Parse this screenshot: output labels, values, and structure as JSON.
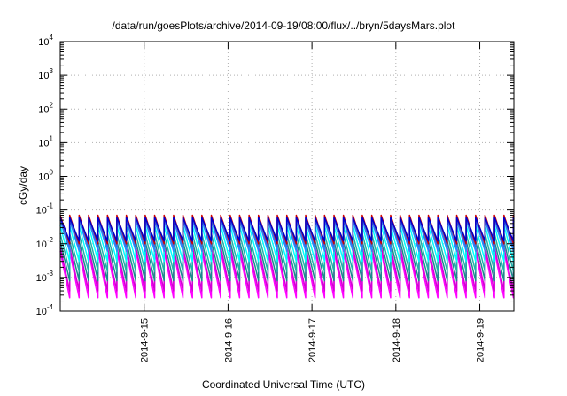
{
  "chart_data": {
    "type": "line",
    "title": "/data/run/goesPlots/archive/2014-09-19/08:00/flux/../bryn/5daysMars.plot",
    "xlabel": "Coordinated Universal Time (UTC)",
    "ylabel": "cGy/day",
    "yscale": "log",
    "ylim": [
      0.0001,
      10000
    ],
    "xlim": [
      "2014-09-14T00:00",
      "2014-09-19T09:45"
    ],
    "grid": true,
    "x_ticks": [
      "2014-9-15",
      "2014-9-16",
      "2014-9-17",
      "2014-9-18",
      "2014-9-19"
    ],
    "y_ticks": [
      {
        "base": "10",
        "exp": "-4"
      },
      {
        "base": "10",
        "exp": "-3"
      },
      {
        "base": "10",
        "exp": "-2"
      },
      {
        "base": "10",
        "exp": "-1"
      },
      {
        "base": "10",
        "exp": "0"
      },
      {
        "base": "10",
        "exp": "1"
      },
      {
        "base": "10",
        "exp": "2"
      },
      {
        "base": "10",
        "exp": "3"
      },
      {
        "base": "10",
        "exp": "4"
      }
    ],
    "sawtooth_period_hours": 2.7,
    "series": [
      {
        "color": "#ff00ff",
        "peak": 0.006,
        "trough": 0.00025
      },
      {
        "color": "#d400d4",
        "peak": 0.008,
        "trough": 0.0004
      },
      {
        "color": "#1a8c8c",
        "peak": 0.012,
        "trough": 0.0008
      },
      {
        "color": "#20b2aa",
        "peak": 0.02,
        "trough": 0.0015
      },
      {
        "color": "#00ffff",
        "peak": 0.035,
        "trough": 0.003
      },
      {
        "color": "#1e90ff",
        "peak": 0.05,
        "trough": 0.006
      },
      {
        "color": "#4169e1",
        "peak": 0.055,
        "trough": 0.008
      },
      {
        "color": "#cc0000",
        "peak": 0.07,
        "trough": 0.01
      },
      {
        "color": "#0000cd",
        "peak": 0.06,
        "trough": 0.012
      }
    ]
  }
}
